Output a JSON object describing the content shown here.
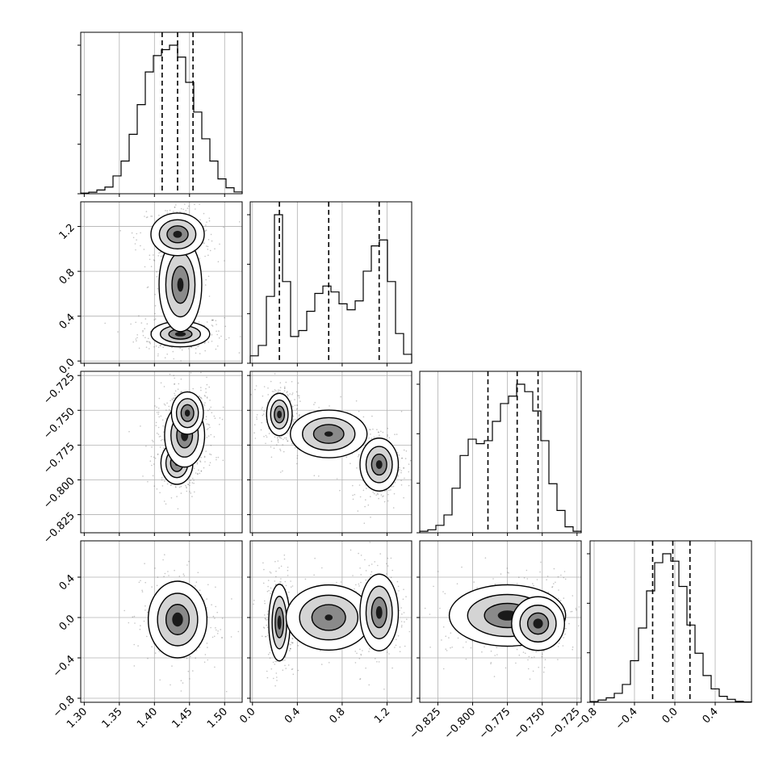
{
  "chart_data": {
    "type": "corner",
    "parameters": 4,
    "grid": true,
    "quantile_lines": "dashed",
    "axes": [
      {
        "range": [
          1.295,
          1.525
        ],
        "ticks": [
          "1.30",
          "1.35",
          "1.40",
          "1.45",
          "1.50"
        ],
        "tick_values": [
          1.3,
          1.35,
          1.4,
          1.45,
          1.5
        ],
        "quantiles": [
          1.411,
          1.433,
          1.455
        ]
      },
      {
        "range": [
          -0.02,
          1.42
        ],
        "ticks": [
          "0.0",
          "0.4",
          "0.8",
          "1.2"
        ],
        "tick_values": [
          0.0,
          0.4,
          0.8,
          1.2
        ],
        "quantiles": [
          0.24,
          0.68,
          1.13
        ]
      },
      {
        "range": [
          -0.838,
          -0.722
        ],
        "ticks": [
          "−0.825",
          "−0.800",
          "−0.775",
          "−0.750",
          "−0.725"
        ],
        "tick_values": [
          -0.825,
          -0.8,
          -0.775,
          -0.75,
          -0.725
        ],
        "quantiles": [
          -0.789,
          -0.768,
          -0.753
        ]
      },
      {
        "range": [
          -0.84,
          0.76
        ],
        "ticks": [
          "−0.8",
          "−0.4",
          "0.0",
          "0.4"
        ],
        "tick_values": [
          -0.8,
          -0.4,
          0.0,
          0.4
        ],
        "quantiles": [
          -0.22,
          -0.02,
          0.15
        ]
      }
    ],
    "histograms": [
      [
        0.004,
        0.01,
        0.025,
        0.045,
        0.12,
        0.22,
        0.4,
        0.6,
        0.82,
        0.93,
        0.97,
        1.0,
        0.92,
        0.75,
        0.55,
        0.37,
        0.22,
        0.1,
        0.04,
        0.012
      ],
      [
        0.05,
        0.12,
        0.45,
        1.0,
        0.55,
        0.18,
        0.22,
        0.35,
        0.47,
        0.52,
        0.48,
        0.4,
        0.36,
        0.42,
        0.62,
        0.79,
        0.83,
        0.55,
        0.2,
        0.06
      ],
      [
        0.01,
        0.02,
        0.05,
        0.12,
        0.3,
        0.52,
        0.63,
        0.6,
        0.62,
        0.75,
        0.87,
        0.92,
        1.0,
        0.95,
        0.82,
        0.62,
        0.33,
        0.15,
        0.04,
        0.01
      ],
      [
        0.005,
        0.015,
        0.03,
        0.06,
        0.12,
        0.28,
        0.5,
        0.75,
        0.94,
        1.0,
        0.95,
        0.78,
        0.52,
        0.33,
        0.18,
        0.09,
        0.04,
        0.02,
        0.006,
        0.002
      ]
    ],
    "modes": {
      "1-0": [
        {
          "c": [
            1.437,
            0.24
          ],
          "s": [
            0.022,
            0.06
          ],
          "w": 1.0
        },
        {
          "c": [
            1.437,
            0.68
          ],
          "s": [
            0.016,
            0.22
          ],
          "w": 0.8
        },
        {
          "c": [
            1.433,
            1.13
          ],
          "s": [
            0.02,
            0.1
          ],
          "w": 0.9
        }
      ],
      "2-0": [
        {
          "c": [
            1.432,
            -0.788
          ],
          "s": [
            0.012,
            0.008
          ],
          "w": 0.7
        },
        {
          "c": [
            1.443,
            -0.768
          ],
          "s": [
            0.015,
            0.012
          ],
          "w": 1.0
        },
        {
          "c": [
            1.447,
            -0.752
          ],
          "s": [
            0.012,
            0.008
          ],
          "w": 0.9
        }
      ],
      "3-0": [
        {
          "c": [
            1.433,
            -0.02
          ],
          "s": [
            0.022,
            0.2
          ],
          "w": 1.0
        }
      ],
      "2-1": [
        {
          "c": [
            0.24,
            -0.753
          ],
          "s": [
            0.06,
            0.008
          ],
          "w": 1.0
        },
        {
          "c": [
            0.68,
            -0.767
          ],
          "s": [
            0.18,
            0.009
          ],
          "w": 0.6
        },
        {
          "c": [
            1.13,
            -0.789
          ],
          "s": [
            0.09,
            0.01
          ],
          "w": 0.9
        }
      ],
      "3-1": [
        {
          "c": [
            0.24,
            -0.05
          ],
          "s": [
            0.05,
            0.2
          ],
          "w": 1.0
        },
        {
          "c": [
            0.68,
            0.0
          ],
          "s": [
            0.2,
            0.17
          ],
          "w": 0.5
        },
        {
          "c": [
            1.13,
            0.05
          ],
          "s": [
            0.09,
            0.2
          ],
          "w": 0.9
        }
      ],
      "3-2": [
        {
          "c": [
            -0.775,
            0.02
          ],
          "s": [
            0.022,
            0.16
          ],
          "w": 0.9
        },
        {
          "c": [
            -0.753,
            -0.06
          ],
          "s": [
            0.01,
            0.14
          ],
          "w": 1.0
        }
      ]
    }
  }
}
